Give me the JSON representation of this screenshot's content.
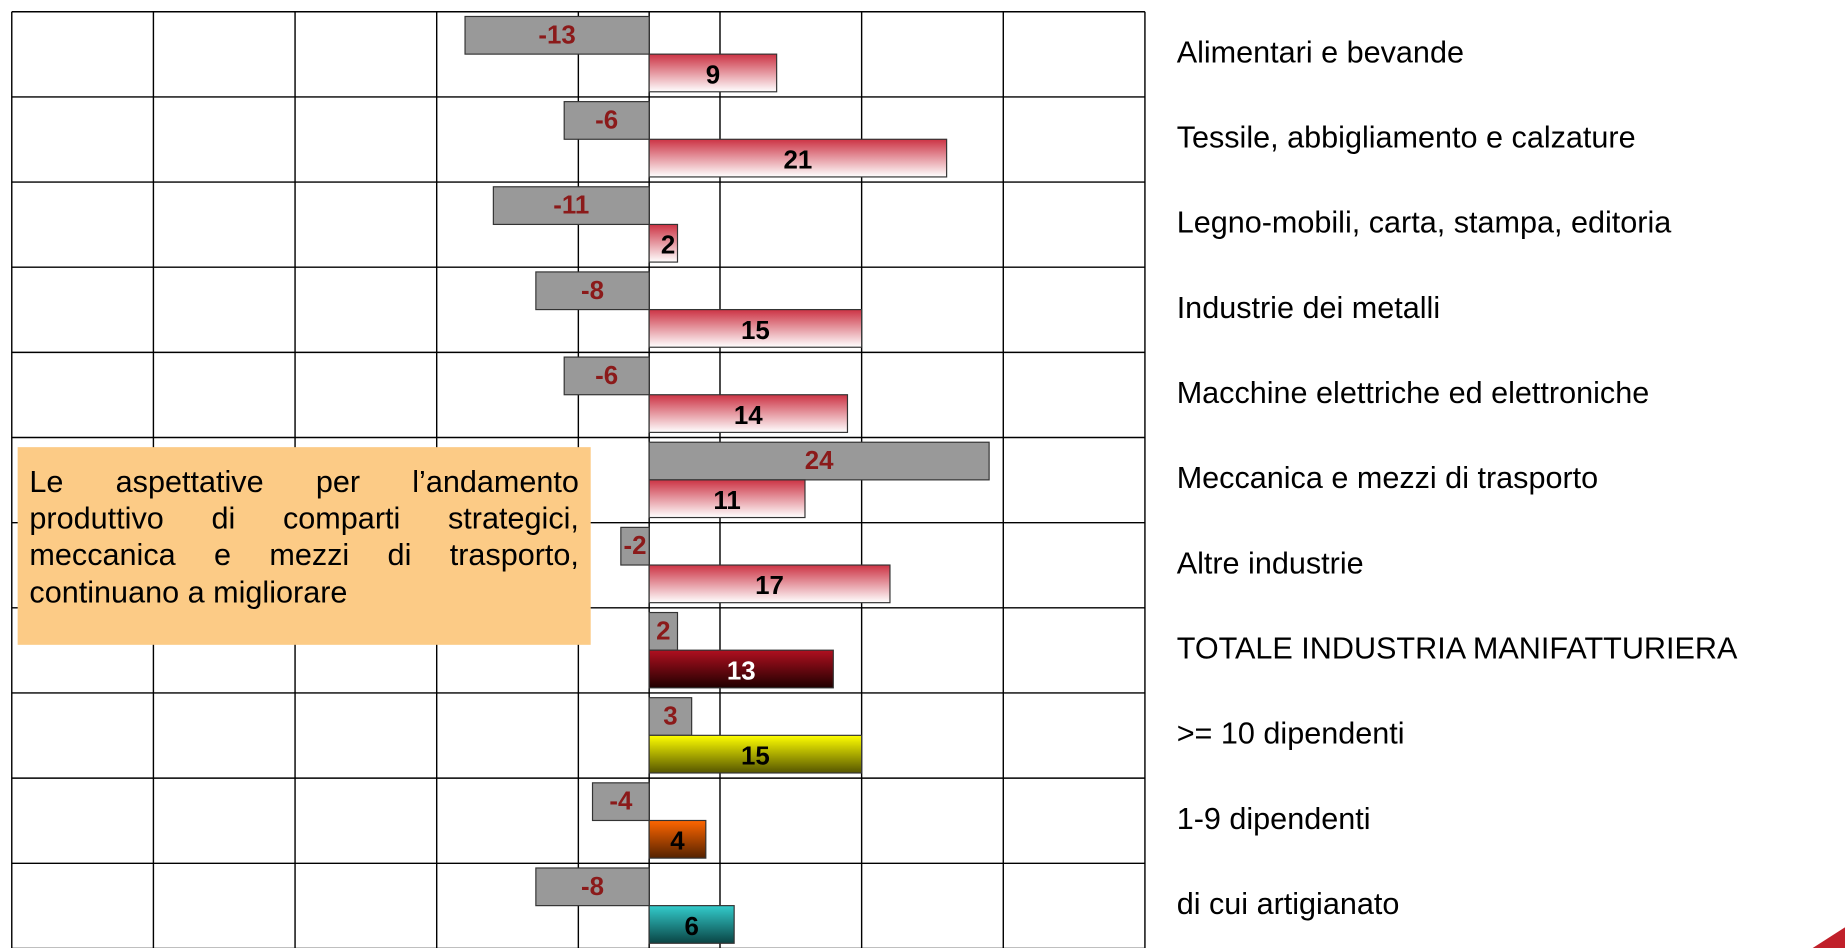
{
  "chart_data": {
    "type": "bar",
    "orientation": "horizontal",
    "annotation": "Le aspettative per l’andamento produttivo di comparti strategici, meccanica e mezzi di trasporto, continuano a migliorare",
    "categories": [
      "Alimentari e bevande",
      "Tessile, abbigliamento e calzature",
      "Legno-mobili, carta, stampa, editoria",
      "Industrie dei metalli",
      "Macchine elettriche ed elettroniche",
      "Meccanica e mezzi di trasporto",
      "Altre industrie",
      "TOTALE INDUSTRIA MANIFATTURIERA",
      ">= 10 dipendenti",
      "1-9 dipendenti",
      "di cui artigianato"
    ],
    "series": [
      {
        "color": "#999999",
        "label_color": "#8b1a1a",
        "values": [
          -13,
          -6,
          -11,
          -8,
          -6,
          24,
          -2,
          2,
          3,
          -4,
          -8
        ]
      },
      {
        "colors": [
          "#cc3344",
          "#cc3344",
          "#cc3344",
          "#cc3344",
          "#cc3344",
          "#cc3344",
          "#cc3344",
          "#b01020",
          "#ffff00",
          "#ff6600",
          "#33cccc"
        ],
        "colors_bottom": [
          "#ffffff",
          "#ffffff",
          "#ffffff",
          "#ffffff",
          "#ffffff",
          "#ffffff",
          "#ffffff",
          "#200000",
          "#555500",
          "#552200",
          "#0a4444"
        ],
        "label_colors": [
          "#000000",
          "#000000",
          "#000000",
          "#000000",
          "#000000",
          "#000000",
          "#000000",
          "#ffffff",
          "#000000",
          "#000000",
          "#000000"
        ],
        "values": [
          9,
          21,
          2,
          15,
          14,
          11,
          17,
          13,
          15,
          4,
          6
        ]
      }
    ],
    "xlim": [
      -45,
      35
    ],
    "xticks": [
      -45,
      -35,
      -25,
      -15,
      -5,
      5,
      15,
      25,
      35
    ],
    "grid": true
  }
}
